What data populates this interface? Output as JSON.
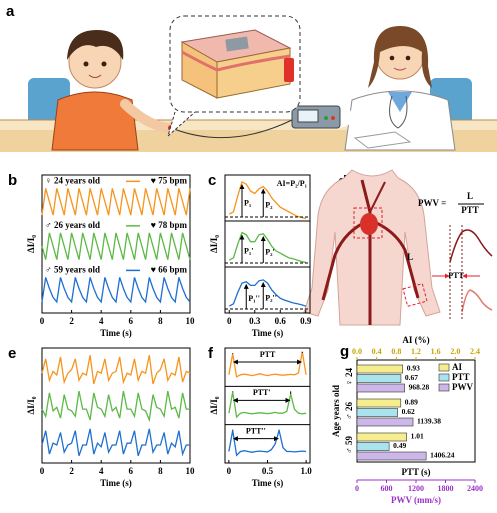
{
  "illustrations": {
    "a": {
      "panel": "a"
    },
    "d": {
      "panel": "d",
      "formula_lhs": "PWV =",
      "formula_numerator": "L",
      "formula_denominator": "PTT",
      "length_label": "L",
      "delay_label": "PTT"
    }
  },
  "chart_data": [
    {
      "type": "line",
      "panel": "b",
      "xlabel": "Time (s)",
      "ylabel": "ΔI/I₀",
      "x": [
        0,
        0.25,
        0.5,
        0.75,
        1,
        1.25,
        1.5,
        1.75,
        2,
        2.25,
        2.5,
        2.75,
        3,
        3.25,
        3.5,
        3.75,
        4,
        4.25,
        4.5,
        4.75,
        5,
        5.25,
        5.5,
        5.75,
        6,
        6.25,
        6.5,
        6.75,
        7,
        7.25,
        7.5,
        7.75,
        8,
        8.25,
        8.5,
        8.75,
        9,
        9.25,
        9.5,
        9.75,
        10
      ],
      "xlim": [
        0,
        10
      ],
      "xticks": [
        0,
        2,
        4,
        6,
        8,
        10
      ],
      "ylim": [
        -0.2,
        2.9
      ],
      "series": [
        {
          "name": "♀ 24 years old",
          "rate": "♥ 75 bpm",
          "color": "#f7941d",
          "values": [
            2.0,
            2.6,
            2.3,
            2.0,
            2.6,
            2.3,
            2.0,
            2.6,
            2.3,
            2.0,
            2.6,
            2.3,
            2.0,
            2.6,
            2.3,
            2.0,
            2.6,
            2.3,
            2.0,
            2.6,
            2.3,
            2.0,
            2.6,
            2.3,
            2.0,
            2.6,
            2.3,
            2.0,
            2.6,
            2.3,
            2.0,
            2.6,
            2.3,
            2.0,
            2.6,
            2.3,
            2.0,
            2.6,
            2.3,
            2.0,
            2.6
          ]
        },
        {
          "name": "♂ 26 years old",
          "rate": "♥ 78 bpm",
          "color": "#5cb947",
          "values": [
            1.3,
            1.0,
            1.6,
            1.3,
            1.0,
            1.6,
            1.3,
            1.0,
            1.6,
            1.3,
            1.0,
            1.6,
            1.3,
            1.0,
            1.6,
            1.3,
            1.0,
            1.6,
            1.3,
            1.0,
            1.6,
            1.3,
            1.0,
            1.6,
            1.3,
            1.0,
            1.6,
            1.3,
            1.0,
            1.6,
            1.3,
            1.0,
            1.6,
            1.3,
            1.0,
            1.6,
            1.3,
            1.0,
            1.6,
            1.3,
            1.0
          ]
        },
        {
          "name": "♂ 59 years old",
          "rate": "♥ 66 bpm",
          "color": "#1f6fd1",
          "values": [
            0.05,
            0.6,
            0.35,
            0.15,
            0.05,
            0.6,
            0.35,
            0.15,
            0.05,
            0.6,
            0.35,
            0.15,
            0.05,
            0.6,
            0.35,
            0.15,
            0.05,
            0.6,
            0.35,
            0.15,
            0.05,
            0.6,
            0.35,
            0.15,
            0.05,
            0.6,
            0.35,
            0.15,
            0.05,
            0.6,
            0.35,
            0.15,
            0.05,
            0.6,
            0.35,
            0.15,
            0.05,
            0.6,
            0.35,
            0.15,
            0.05
          ]
        }
      ]
    },
    {
      "type": "line",
      "panel": "c",
      "xlabel": "Time (s)",
      "ylabel": "ΔI/I₀",
      "annotation": "AI=P₂/P₁",
      "stacked_panels": true,
      "x": [
        0,
        0.05,
        0.1,
        0.15,
        0.2,
        0.25,
        0.3,
        0.35,
        0.4,
        0.45,
        0.5,
        0.55,
        0.6,
        0.65,
        0.7,
        0.75,
        0.8,
        0.85,
        0.9
      ],
      "xlim": [
        -0.05,
        0.95
      ],
      "xticks": [
        0,
        0.3,
        0.6,
        0.9
      ],
      "ylim": [
        0,
        3
      ],
      "series": [
        {
          "color": "#f7941d",
          "peaks": [
            "P₁",
            "P₂"
          ],
          "values": [
            2.15,
            2.2,
            2.55,
            2.85,
            2.8,
            2.65,
            2.6,
            2.7,
            2.75,
            2.65,
            2.5,
            2.4,
            2.3,
            2.25,
            2.2,
            2.15,
            2.1,
            2.08,
            2.05
          ]
        },
        {
          "color": "#5cb947",
          "peaks": [
            "P₁'",
            "P₂'"
          ],
          "values": [
            1.15,
            1.2,
            1.5,
            1.75,
            1.7,
            1.55,
            1.55,
            1.7,
            1.72,
            1.6,
            1.45,
            1.35,
            1.3,
            1.25,
            1.2,
            1.18,
            1.15,
            1.12,
            1.1
          ]
        },
        {
          "color": "#1f6fd1",
          "peaks": [
            "P₁''",
            "P₂''"
          ],
          "values": [
            0.15,
            0.2,
            0.45,
            0.65,
            0.68,
            0.6,
            0.6,
            0.7,
            0.72,
            0.65,
            0.5,
            0.4,
            0.32,
            0.28,
            0.25,
            0.22,
            0.2,
            0.18,
            0.15
          ]
        }
      ]
    },
    {
      "type": "line",
      "panel": "e",
      "xlabel": "Time (s)",
      "ylabel": "ΔI/I₀",
      "x": [
        0,
        0.25,
        0.5,
        0.75,
        1,
        1.25,
        1.5,
        1.75,
        2,
        2.25,
        2.5,
        2.75,
        3,
        3.25,
        3.5,
        3.75,
        4,
        4.25,
        4.5,
        4.75,
        5,
        5.25,
        5.5,
        5.75,
        6,
        6.25,
        6.5,
        6.75,
        7,
        7.25,
        7.5,
        7.75,
        8,
        8.25,
        8.5,
        8.75,
        9,
        9.25,
        9.5,
        9.75,
        10
      ],
      "xlim": [
        0,
        10
      ],
      "xticks": [
        0,
        2,
        4,
        6,
        8,
        10
      ],
      "ylim": [
        -0.2,
        3.0
      ],
      "series": [
        {
          "color": "#f7941d",
          "values": [
            2.3,
            2.7,
            2.1,
            2.35,
            2.25,
            2.75,
            2.05,
            2.3,
            2.4,
            2.7,
            2.1,
            2.3,
            2.25,
            2.8,
            2.0,
            2.35,
            2.3,
            2.7,
            2.1,
            2.3,
            2.35,
            2.75,
            2.05,
            2.3,
            2.25,
            2.7,
            2.1,
            2.35,
            2.3,
            2.8,
            2.0,
            2.3,
            2.4,
            2.7,
            2.1,
            2.3,
            2.25,
            2.75,
            2.05,
            2.35,
            2.3
          ]
        },
        {
          "color": "#5cb947",
          "values": [
            1.3,
            1.1,
            1.75,
            1.25,
            1.35,
            1.05,
            1.7,
            1.3,
            1.25,
            1.1,
            1.8,
            1.3,
            1.3,
            1.0,
            1.75,
            1.35,
            1.3,
            1.1,
            1.7,
            1.25,
            1.35,
            1.05,
            1.8,
            1.3,
            1.3,
            1.1,
            1.75,
            1.3,
            1.25,
            1.0,
            1.7,
            1.35,
            1.3,
            1.1,
            1.8,
            1.3,
            1.35,
            1.05,
            1.75,
            1.3,
            1.3
          ]
        },
        {
          "color": "#1f6fd1",
          "values": [
            0.3,
            0.7,
            0.05,
            0.35,
            0.3,
            0.65,
            0.1,
            0.3,
            0.35,
            0.7,
            0.0,
            0.3,
            0.3,
            0.75,
            0.05,
            0.35,
            0.25,
            0.65,
            0.1,
            0.3,
            0.3,
            0.7,
            0.05,
            0.35,
            0.35,
            0.7,
            0.0,
            0.3,
            0.3,
            0.75,
            0.1,
            0.3,
            0.3,
            0.65,
            0.05,
            0.35,
            0.25,
            0.7,
            0.05,
            0.3,
            0.3
          ]
        }
      ]
    },
    {
      "type": "line",
      "panel": "f",
      "xlabel": "Time (s)",
      "ylabel": "ΔI/I₀",
      "stacked_panels": true,
      "x": [
        0,
        0.05,
        0.1,
        0.15,
        0.2,
        0.25,
        0.3,
        0.35,
        0.4,
        0.45,
        0.5,
        0.55,
        0.6,
        0.65,
        0.7,
        0.75,
        0.8,
        0.85,
        0.9,
        0.95,
        1
      ],
      "xlim": [
        -0.05,
        1.05
      ],
      "xticks": [
        0,
        0.5,
        {
          "value": 1,
          "label": "1.0"
        }
      ],
      "ylim": [
        0,
        3
      ],
      "series": [
        {
          "color": "#f7941d",
          "ptt": "PTT",
          "values": [
            2.3,
            2.85,
            2.25,
            2.3,
            2.32,
            2.3,
            2.28,
            2.3,
            2.33,
            2.3,
            2.28,
            2.3,
            2.32,
            2.3,
            2.29,
            2.3,
            2.31,
            2.3,
            2.35,
            2.9,
            2.3
          ]
        },
        {
          "color": "#5cb947",
          "ptt": "PTT'",
          "values": [
            1.3,
            1.85,
            1.2,
            1.3,
            1.32,
            1.3,
            1.28,
            1.3,
            1.31,
            1.3,
            1.29,
            1.3,
            1.32,
            1.3,
            1.3,
            1.35,
            1.8,
            1.4,
            1.3,
            1.28,
            1.3
          ]
        },
        {
          "color": "#1f6fd1",
          "ptt": "PTT''",
          "values": [
            0.3,
            0.85,
            0.2,
            0.3,
            0.32,
            0.3,
            0.28,
            0.3,
            0.31,
            0.3,
            0.29,
            0.35,
            0.5,
            0.85,
            0.4,
            0.3,
            0.3,
            0.29,
            0.3,
            0.31,
            0.3
          ]
        }
      ]
    },
    {
      "type": "barh",
      "panel": "g",
      "ylabel": "Age years old",
      "legend": "upper right",
      "categories": [
        "♀ 24",
        "♂ 26",
        "♂ 59"
      ],
      "x2label": "AI (%)",
      "x2lim": [
        0,
        2.4
      ],
      "x2color": "#c9a400",
      "x2ticks": [
        {
          "value": 0,
          "label": "0.0"
        },
        0.4,
        0.8,
        1.2,
        1.6,
        {
          "value": 2,
          "label": "2.0"
        },
        2.4
      ],
      "xlabel": "PTT (s)",
      "xlim": [
        0,
        1.8
      ],
      "x3label": "PWV (mm/s)",
      "x3lim": [
        0,
        2400
      ],
      "x3color": "#9b30c8",
      "x3ticks": [
        0,
        600,
        1200,
        1800,
        2400
      ],
      "series": [
        {
          "name": "AI",
          "axis": "x2",
          "color": "#f6ee8e",
          "values": [
            0.93,
            0.89,
            1.01
          ]
        },
        {
          "name": "PTT",
          "axis": "x",
          "color": "#a9e3ee",
          "values": [
            0.67,
            0.62,
            0.49
          ]
        },
        {
          "name": "PWV",
          "axis": "x3",
          "color": "#cdb6e8",
          "values": [
            968.28,
            1139.38,
            1406.24
          ]
        }
      ]
    }
  ]
}
